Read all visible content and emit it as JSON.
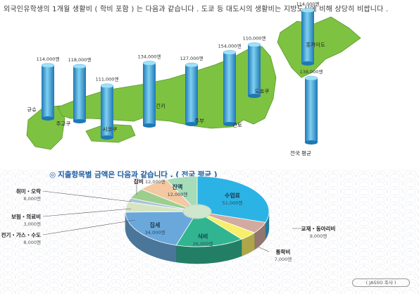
{
  "intro": "외국인유학생의 1개월 생활비 ( 학비 포함 ) 는 다음과 같습니다 . 도쿄 등 대도시의 생활비는 지방도시에 비해 상당히 비쌉니다 .",
  "colors": {
    "map_land": "#7ec242",
    "map_edge": "#5a9a2a",
    "pillar_light": "#7fd0f0",
    "pillar_dark": "#1e78b4",
    "title_blue": "#1a5aa0"
  },
  "region_chart": {
    "type": "bar",
    "unit": "엔",
    "regions": [
      {
        "name": "규슈",
        "value": 114000,
        "value_label": "114,000엔"
      },
      {
        "name": "주고쿠",
        "value": 118000,
        "value_label": "118,000엔"
      },
      {
        "name": "시코쿠",
        "value": 111000,
        "value_label": "111,000엔"
      },
      {
        "name": "긴키",
        "value": 134000,
        "value_label": "134,000엔"
      },
      {
        "name": "주부",
        "value": 127000,
        "value_label": "127,000엔"
      },
      {
        "name": "간토",
        "value": 154000,
        "value_label": "154,000엔"
      },
      {
        "name": "도호쿠",
        "value": 110000,
        "value_label": "110,000엔"
      },
      {
        "name": "홋카이도",
        "value": 114000,
        "value_label": "114,000엔"
      },
      {
        "name": "전국 평균",
        "value": 138000,
        "value_label": "138,000엔"
      }
    ]
  },
  "pie_chart": {
    "type": "pie",
    "title_mark": "◎",
    "title": "지출항목별 금액은 다음과 같습니다 .   ( 전국 평균 )",
    "slices": [
      {
        "name": "수업료",
        "value": 51000,
        "value_label": "51,000엔",
        "color": "#2cb3e6"
      },
      {
        "name": "교재・동아리비",
        "value": 9000,
        "value_label": "9,000엔",
        "color": "#d1aaa0"
      },
      {
        "name": "통학비",
        "value": 7000,
        "value_label": "7,000엔",
        "color": "#f7ef6a"
      },
      {
        "name": "식비",
        "value": 26000,
        "value_label": "26,000엔",
        "color": "#31b590"
      },
      {
        "name": "집세",
        "value": 34000,
        "value_label": "34,000엔",
        "color": "#6aa8dc"
      },
      {
        "name": "전기・가스・수도",
        "value": 8000,
        "value_label": "8,000엔",
        "color": "#d7e4c2"
      },
      {
        "name": "보험・의료비",
        "value": 3000,
        "value_label": "3,000엔",
        "color": "#a9c4da"
      },
      {
        "name": "취미・오락",
        "value": 8000,
        "value_label": "8,000엔",
        "color": "#9ccf8e"
      },
      {
        "name": "잡비",
        "value": 12000,
        "value_label": "12,000엔",
        "color": "#f4c8a0"
      },
      {
        "name": "잔액",
        "value": 12000,
        "value_label": "12,000엔",
        "color": "#a6dcb8"
      }
    ]
  },
  "chart_data": [
    {
      "type": "bar",
      "categories": [
        "규슈",
        "주고쿠",
        "시코쿠",
        "긴키",
        "주부",
        "간토",
        "도호쿠",
        "홋카이도",
        "전국 평균"
      ],
      "values": [
        114000,
        118000,
        111000,
        134000,
        127000,
        154000,
        110000,
        114000,
        138000
      ],
      "unit": "엔"
    },
    {
      "type": "pie",
      "title": "지출항목별 금액은 다음과 같습니다 .   ( 전국 평균 )",
      "categories": [
        "수업료",
        "교재・동아리비",
        "통학비",
        "식비",
        "집세",
        "전기・가스・수도",
        "보험・의료비",
        "취미・오락",
        "잡비",
        "잔액"
      ],
      "values": [
        51000,
        9000,
        7000,
        26000,
        34000,
        8000,
        3000,
        8000,
        12000,
        12000
      ],
      "unit": "엔"
    }
  ],
  "source": "( JASSO 조사 )"
}
